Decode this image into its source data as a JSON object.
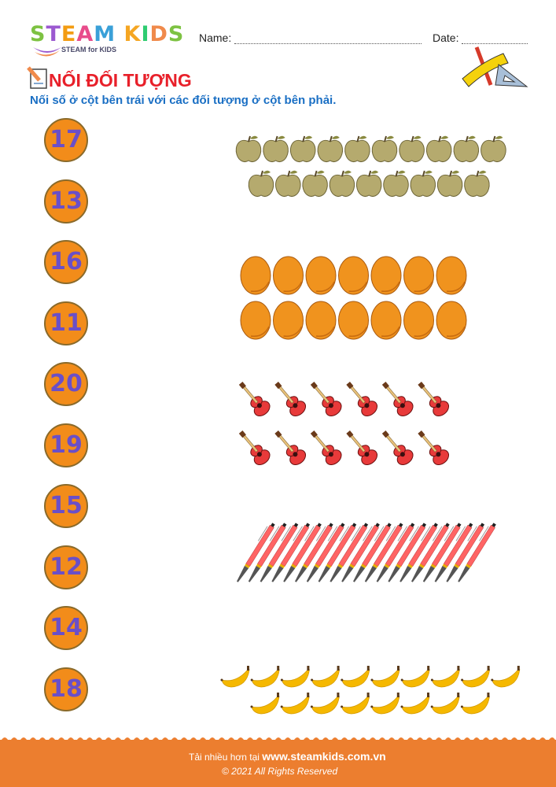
{
  "header": {
    "logo_text": "STEAM KIDS",
    "logo_subtitle": "STEAM for KIDS",
    "logo_colors": [
      "#7dc242",
      "#9b59d0",
      "#f39c12",
      "#e84c8b",
      "#3aa0d8",
      "#9b59d0",
      "#f5a623",
      "#2ecc71",
      "#f08a4b"
    ],
    "name_label": "Name:",
    "date_label": "Date:"
  },
  "worksheet": {
    "title": "NỐI ĐỐI TƯỢNG",
    "instruction": "Nối số ở cột bên trái với các đối tượng ở cột bên phải.",
    "numbers": [
      "17",
      "13",
      "16",
      "11",
      "20",
      "19",
      "15",
      "12",
      "14",
      "18"
    ],
    "object_groups": [
      {
        "object": "apple-icon",
        "rows": [
          10,
          9
        ],
        "color": "#b5aa6e"
      },
      {
        "object": "orange-icon",
        "rows": [
          7,
          7
        ],
        "color": "#f0931e"
      },
      {
        "object": "guitar-icon",
        "rows": [
          6,
          6
        ],
        "color": "#e83a3a"
      },
      {
        "object": "pen-icon",
        "rows": [
          20
        ],
        "color": "#ff6464"
      },
      {
        "object": "banana-icon",
        "rows": [
          10,
          8
        ],
        "color": "#f5b800"
      }
    ]
  },
  "footer": {
    "download_prefix": "Tải nhiều hơn tại",
    "website": "www.steamkids.com.vn",
    "copyright": "© 2021 All Rights Reserved"
  },
  "colors": {
    "accent": "#ec7e2f",
    "title": "#e8202a",
    "instruction": "#1a6fc4"
  }
}
